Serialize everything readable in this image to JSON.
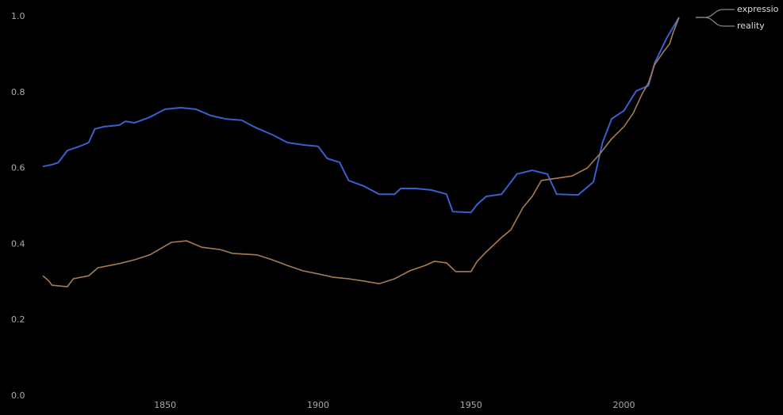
{
  "chart_data": {
    "type": "line",
    "xlim": [
      1796,
      2052
    ],
    "ylim": [
      0,
      1.0
    ],
    "xticks": [
      1850,
      1900,
      1950,
      2000
    ],
    "yticks": [
      {
        "value": 0,
        "label": "0.0"
      },
      0.2,
      0.4,
      0.6,
      0.8,
      {
        "value": 1.0,
        "label": "1.0"
      }
    ],
    "series": [
      {
        "name": "expressio",
        "color": "#3a5fcd",
        "x": [
          1810,
          1813,
          1815,
          1818,
          1822,
          1825,
          1827,
          1830,
          1835,
          1837,
          1840,
          1845,
          1850,
          1855,
          1860,
          1865,
          1870,
          1875,
          1878,
          1880,
          1885,
          1890,
          1895,
          1900,
          1903,
          1907,
          1910,
          1915,
          1920,
          1925,
          1927,
          1932,
          1937,
          1942,
          1944,
          1950,
          1952,
          1955,
          1960,
          1965,
          1970,
          1975,
          1978,
          1985,
          1990,
          1993,
          1996,
          2000,
          2004,
          2008,
          2010,
          2014,
          2016,
          2018
        ],
        "values": [
          0.605,
          0.61,
          0.615,
          0.647,
          0.658,
          0.668,
          0.704,
          0.71,
          0.714,
          0.724,
          0.72,
          0.735,
          0.756,
          0.76,
          0.756,
          0.739,
          0.73,
          0.727,
          0.714,
          0.706,
          0.689,
          0.668,
          0.662,
          0.658,
          0.626,
          0.616,
          0.568,
          0.553,
          0.532,
          0.532,
          0.547,
          0.547,
          0.543,
          0.532,
          0.486,
          0.484,
          0.505,
          0.526,
          0.532,
          0.585,
          0.595,
          0.585,
          0.532,
          0.53,
          0.564,
          0.668,
          0.731,
          0.752,
          0.804,
          0.818,
          0.877,
          0.944,
          0.971,
          0.998
        ]
      },
      {
        "name": "reality",
        "color": "#a67c52",
        "x": [
          1810,
          1812,
          1813,
          1818,
          1820,
          1825,
          1828,
          1835,
          1840,
          1845,
          1848,
          1852,
          1857,
          1862,
          1868,
          1872,
          1880,
          1885,
          1890,
          1895,
          1900,
          1905,
          1910,
          1915,
          1920,
          1925,
          1930,
          1935,
          1938,
          1942,
          1945,
          1950,
          1952,
          1955,
          1960,
          1963,
          1967,
          1970,
          1973,
          1978,
          1983,
          1988,
          1992,
          1996,
          2000,
          2003,
          2006,
          2008,
          2010,
          2013,
          2015,
          2016,
          2018
        ],
        "values": [
          0.317,
          0.303,
          0.292,
          0.288,
          0.309,
          0.317,
          0.338,
          0.349,
          0.359,
          0.372,
          0.386,
          0.405,
          0.409,
          0.392,
          0.386,
          0.376,
          0.372,
          0.359,
          0.344,
          0.33,
          0.322,
          0.313,
          0.309,
          0.303,
          0.296,
          0.309,
          0.33,
          0.344,
          0.355,
          0.351,
          0.328,
          0.328,
          0.355,
          0.38,
          0.418,
          0.438,
          0.497,
          0.526,
          0.568,
          0.574,
          0.58,
          0.601,
          0.637,
          0.678,
          0.71,
          0.745,
          0.797,
          0.825,
          0.873,
          0.908,
          0.929,
          0.956,
          0.998
        ]
      }
    ]
  }
}
